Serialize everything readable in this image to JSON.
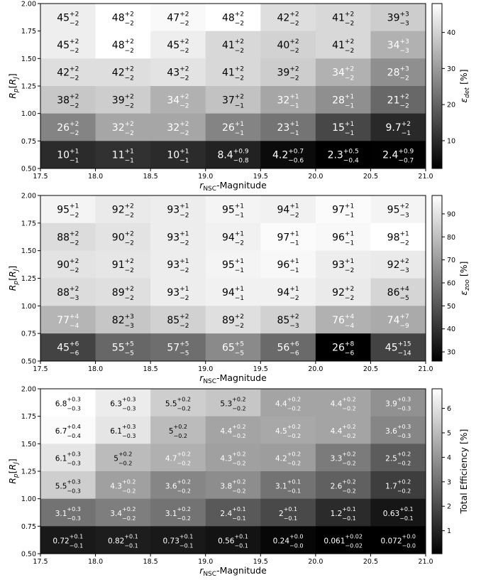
{
  "chart_data": [
    {
      "type": "heatmap",
      "xlabel": "r_NSC-Magnitude",
      "ylabel": "R_p [R_J]",
      "colorbar_label": "ε_det [%]",
      "x_ticks": [
        "17.5",
        "18.0",
        "18.5",
        "19.0",
        "19.5",
        "20.0",
        "20.5",
        "21.0"
      ],
      "y_ticks": [
        "0.50",
        "0.75",
        "1.00",
        "1.25",
        "1.50",
        "1.75",
        "2.00"
      ],
      "colorbar_ticks": [
        10,
        20,
        30,
        40
      ],
      "vmin": 2.3,
      "vmax": 48,
      "xlim": [
        17.5,
        21.0
      ],
      "ylim": [
        0.5,
        2.0
      ],
      "rows": [
        {
          "y_range": [
            1.75,
            2.0
          ],
          "cells": [
            {
              "v": 45,
              "up": "+2",
              "lo": "−2"
            },
            {
              "v": 48,
              "up": "+2",
              "lo": "−2"
            },
            {
              "v": 47,
              "up": "+2",
              "lo": "−2"
            },
            {
              "v": 48,
              "up": "+2",
              "lo": "−2"
            },
            {
              "v": 42,
              "up": "+2",
              "lo": "−2"
            },
            {
              "v": 41,
              "up": "+2",
              "lo": "−2"
            },
            {
              "v": 39,
              "up": "+3",
              "lo": "−3"
            }
          ]
        },
        {
          "y_range": [
            1.5,
            1.75
          ],
          "cells": [
            {
              "v": 45,
              "up": "+2",
              "lo": "−2"
            },
            {
              "v": 48,
              "up": "+2",
              "lo": "−2"
            },
            {
              "v": 45,
              "up": "+2",
              "lo": "−2"
            },
            {
              "v": 41,
              "up": "+2",
              "lo": "−2"
            },
            {
              "v": 40,
              "up": "+2",
              "lo": "−2"
            },
            {
              "v": 41,
              "up": "+2",
              "lo": "−2"
            },
            {
              "v": 34,
              "up": "+3",
              "lo": "−3"
            }
          ]
        },
        {
          "y_range": [
            1.25,
            1.5
          ],
          "cells": [
            {
              "v": 42,
              "up": "+2",
              "lo": "−2"
            },
            {
              "v": 42,
              "up": "+2",
              "lo": "−2"
            },
            {
              "v": 43,
              "up": "+2",
              "lo": "−2"
            },
            {
              "v": 41,
              "up": "+2",
              "lo": "−2"
            },
            {
              "v": 39,
              "up": "+2",
              "lo": "−2"
            },
            {
              "v": 34,
              "up": "+2",
              "lo": "−2"
            },
            {
              "v": 28,
              "up": "+3",
              "lo": "−2"
            }
          ]
        },
        {
          "y_range": [
            1.0,
            1.25
          ],
          "cells": [
            {
              "v": 38,
              "up": "+2",
              "lo": "−2"
            },
            {
              "v": 39,
              "up": "+2",
              "lo": "−2"
            },
            {
              "v": 34,
              "up": "+2",
              "lo": "−2"
            },
            {
              "v": 37,
              "up": "+2",
              "lo": "−1"
            },
            {
              "v": 32,
              "up": "+1",
              "lo": "−1"
            },
            {
              "v": 28,
              "up": "+1",
              "lo": "−1"
            },
            {
              "v": 21,
              "up": "+2",
              "lo": "−2"
            }
          ]
        },
        {
          "y_range": [
            0.75,
            1.0
          ],
          "cells": [
            {
              "v": 26,
              "up": "+2",
              "lo": "−2"
            },
            {
              "v": 32,
              "up": "+2",
              "lo": "−2"
            },
            {
              "v": 32,
              "up": "+2",
              "lo": "−2"
            },
            {
              "v": 26,
              "up": "+1",
              "lo": "−1"
            },
            {
              "v": 23,
              "up": "+1",
              "lo": "−1"
            },
            {
              "v": 15,
              "up": "+1",
              "lo": "−1"
            },
            {
              "v": 9.7,
              "up": "+2",
              "lo": "−1"
            }
          ]
        },
        {
          "y_range": [
            0.5,
            0.75
          ],
          "cells": [
            {
              "v": 10,
              "up": "+1",
              "lo": "−1"
            },
            {
              "v": 11,
              "up": "+1",
              "lo": "−1"
            },
            {
              "v": 10,
              "up": "+1",
              "lo": "−1"
            },
            {
              "v": 8.4,
              "up": "+0.9",
              "lo": "−0.8"
            },
            {
              "v": 4.2,
              "up": "+0.7",
              "lo": "−0.6"
            },
            {
              "v": 2.3,
              "up": "+0.5",
              "lo": "−0.4"
            },
            {
              "v": 2.4,
              "up": "+0.9",
              "lo": "−0.7"
            }
          ]
        }
      ]
    },
    {
      "type": "heatmap",
      "xlabel": "r_NSC-Magnitude",
      "ylabel": "R_p [R_J]",
      "colorbar_label": "ε_zoo [%]",
      "x_ticks": [
        "17.5",
        "18.0",
        "18.5",
        "19.0",
        "19.5",
        "20.0",
        "20.5",
        "21.0"
      ],
      "y_ticks": [
        "0.50",
        "0.75",
        "1.00",
        "1.25",
        "1.50",
        "1.75",
        "2.00"
      ],
      "colorbar_ticks": [
        30,
        40,
        50,
        60,
        70,
        80,
        90
      ],
      "vmin": 26,
      "vmax": 98,
      "xlim": [
        17.5,
        21.0
      ],
      "ylim": [
        0.5,
        2.0
      ],
      "rows": [
        {
          "y_range": [
            1.75,
            2.0
          ],
          "cells": [
            {
              "v": 95,
              "up": "+1",
              "lo": "−2"
            },
            {
              "v": 92,
              "up": "+2",
              "lo": "−2"
            },
            {
              "v": 93,
              "up": "+1",
              "lo": "−2"
            },
            {
              "v": 95,
              "up": "+1",
              "lo": "−1"
            },
            {
              "v": 94,
              "up": "+1",
              "lo": "−2"
            },
            {
              "v": 97,
              "up": "+1",
              "lo": "−1"
            },
            {
              "v": 95,
              "up": "+2",
              "lo": "−3"
            }
          ]
        },
        {
          "y_range": [
            1.5,
            1.75
          ],
          "cells": [
            {
              "v": 88,
              "up": "+2",
              "lo": "−2"
            },
            {
              "v": 90,
              "up": "+2",
              "lo": "−2"
            },
            {
              "v": 93,
              "up": "+1",
              "lo": "−2"
            },
            {
              "v": 94,
              "up": "+1",
              "lo": "−2"
            },
            {
              "v": 97,
              "up": "+1",
              "lo": "−1"
            },
            {
              "v": 96,
              "up": "+1",
              "lo": "−1"
            },
            {
              "v": 98,
              "up": "+1",
              "lo": "−2"
            }
          ]
        },
        {
          "y_range": [
            1.25,
            1.5
          ],
          "cells": [
            {
              "v": 90,
              "up": "+2",
              "lo": "−2"
            },
            {
              "v": 91,
              "up": "+2",
              "lo": "−2"
            },
            {
              "v": 93,
              "up": "+1",
              "lo": "−2"
            },
            {
              "v": 95,
              "up": "+1",
              "lo": "−1"
            },
            {
              "v": 96,
              "up": "+1",
              "lo": "−1"
            },
            {
              "v": 93,
              "up": "+1",
              "lo": "−2"
            },
            {
              "v": 92,
              "up": "+2",
              "lo": "−3"
            }
          ]
        },
        {
          "y_range": [
            1.0,
            1.25
          ],
          "cells": [
            {
              "v": 88,
              "up": "+2",
              "lo": "−3"
            },
            {
              "v": 89,
              "up": "+2",
              "lo": "−2"
            },
            {
              "v": 93,
              "up": "+1",
              "lo": "−2"
            },
            {
              "v": 94,
              "up": "+1",
              "lo": "−1"
            },
            {
              "v": 94,
              "up": "+1",
              "lo": "−2"
            },
            {
              "v": 92,
              "up": "+2",
              "lo": "−2"
            },
            {
              "v": 86,
              "up": "+4",
              "lo": "−5"
            }
          ]
        },
        {
          "y_range": [
            0.75,
            1.0
          ],
          "cells": [
            {
              "v": 77,
              "up": "+4",
              "lo": "−4"
            },
            {
              "v": 82,
              "up": "+3",
              "lo": "−3"
            },
            {
              "v": 85,
              "up": "+2",
              "lo": "−2"
            },
            {
              "v": 89,
              "up": "+2",
              "lo": "−2"
            },
            {
              "v": 85,
              "up": "+2",
              "lo": "−3"
            },
            {
              "v": 76,
              "up": "+4",
              "lo": "−4"
            },
            {
              "v": 74,
              "up": "+7",
              "lo": "−9"
            }
          ]
        },
        {
          "y_range": [
            0.5,
            0.75
          ],
          "cells": [
            {
              "v": 45,
              "up": "+6",
              "lo": "−6"
            },
            {
              "v": 55,
              "up": "+5",
              "lo": "−5"
            },
            {
              "v": 57,
              "up": "+5",
              "lo": "−5"
            },
            {
              "v": 65,
              "up": "+5",
              "lo": "−5"
            },
            {
              "v": 56,
              "up": "+6",
              "lo": "−6"
            },
            {
              "v": 26,
              "up": "+8",
              "lo": "−6"
            },
            {
              "v": 45,
              "up": "+15",
              "lo": "−14"
            }
          ]
        }
      ]
    },
    {
      "type": "heatmap",
      "xlabel": "r_NSC-Magnitude",
      "ylabel": "R_p [R_J]",
      "colorbar_label": "Total Efficiency [%]",
      "x_ticks": [
        "17.5",
        "18.0",
        "18.5",
        "19.0",
        "19.5",
        "20.0",
        "20.5",
        "21.0"
      ],
      "y_ticks": [
        "0.50",
        "0.75",
        "1.00",
        "1.25",
        "1.50",
        "1.75",
        "2.00"
      ],
      "colorbar_ticks": [
        1,
        2,
        3,
        4,
        5,
        6
      ],
      "vmin": 0.06,
      "vmax": 6.8,
      "xlim": [
        17.5,
        21.0
      ],
      "ylim": [
        0.5,
        2.0
      ],
      "rows": [
        {
          "y_range": [
            1.75,
            2.0
          ],
          "cells": [
            {
              "v": 6.8,
              "up": "+0.3",
              "lo": "−0.3"
            },
            {
              "v": 6.3,
              "up": "+0.3",
              "lo": "−0.3"
            },
            {
              "v": 5.5,
              "up": "+0.2",
              "lo": "−0.2"
            },
            {
              "v": 5.3,
              "up": "+0.2",
              "lo": "−0.2"
            },
            {
              "v": 4.4,
              "up": "+0.2",
              "lo": "−0.2"
            },
            {
              "v": 4.4,
              "up": "+0.2",
              "lo": "−0.2"
            },
            {
              "v": 3.9,
              "up": "+0.3",
              "lo": "−0.3"
            }
          ]
        },
        {
          "y_range": [
            1.5,
            1.75
          ],
          "cells": [
            {
              "v": 6.7,
              "up": "+0.4",
              "lo": "−0.4"
            },
            {
              "v": 6.1,
              "up": "+0.3",
              "lo": "−0.3"
            },
            {
              "v": 5,
              "up": "+0.2",
              "lo": "−0.2"
            },
            {
              "v": 4.4,
              "up": "+0.2",
              "lo": "−0.2"
            },
            {
              "v": 4.5,
              "up": "+0.2",
              "lo": "−0.2"
            },
            {
              "v": 4.4,
              "up": "+0.2",
              "lo": "−0.2"
            },
            {
              "v": 3.6,
              "up": "+0.3",
              "lo": "−0.3"
            }
          ]
        },
        {
          "y_range": [
            1.25,
            1.5
          ],
          "cells": [
            {
              "v": 6.1,
              "up": "+0.3",
              "lo": "−0.3"
            },
            {
              "v": 5,
              "up": "+0.2",
              "lo": "−0.2"
            },
            {
              "v": 4.7,
              "up": "+0.2",
              "lo": "−0.2"
            },
            {
              "v": 4.3,
              "up": "+0.2",
              "lo": "−0.2"
            },
            {
              "v": 4.2,
              "up": "+0.2",
              "lo": "−0.2"
            },
            {
              "v": 3.3,
              "up": "+0.2",
              "lo": "−0.2"
            },
            {
              "v": 2.5,
              "up": "+0.2",
              "lo": "−0.2"
            }
          ]
        },
        {
          "y_range": [
            1.0,
            1.25
          ],
          "cells": [
            {
              "v": 5.5,
              "up": "+0.3",
              "lo": "−0.3"
            },
            {
              "v": 4.3,
              "up": "+0.2",
              "lo": "−0.2"
            },
            {
              "v": 3.6,
              "up": "+0.2",
              "lo": "−0.2"
            },
            {
              "v": 3.8,
              "up": "+0.2",
              "lo": "−0.2"
            },
            {
              "v": 3.1,
              "up": "+0.1",
              "lo": "−0.1"
            },
            {
              "v": 2.6,
              "up": "+0.2",
              "lo": "−0.2"
            },
            {
              "v": 1.7,
              "up": "+0.2",
              "lo": "−0.2"
            }
          ]
        },
        {
          "y_range": [
            0.75,
            1.0
          ],
          "cells": [
            {
              "v": 3.1,
              "up": "+0.3",
              "lo": "−0.3"
            },
            {
              "v": 3.4,
              "up": "+0.2",
              "lo": "−0.2"
            },
            {
              "v": 3.1,
              "up": "+0.2",
              "lo": "−0.2"
            },
            {
              "v": 2.4,
              "up": "+0.1",
              "lo": "−0.1"
            },
            {
              "v": 2,
              "up": "+0.1",
              "lo": "−0.1"
            },
            {
              "v": 1.2,
              "up": "+0.1",
              "lo": "−0.1"
            },
            {
              "v": 0.63,
              "up": "+0.1",
              "lo": "−0.1"
            }
          ]
        },
        {
          "y_range": [
            0.5,
            0.75
          ],
          "cells": [
            {
              "v": 0.72,
              "up": "+0.1",
              "lo": "−0.1"
            },
            {
              "v": 0.82,
              "up": "+0.1",
              "lo": "−0.1"
            },
            {
              "v": 0.73,
              "up": "+0.1",
              "lo": "−0.1"
            },
            {
              "v": 0.56,
              "up": "+0.1",
              "lo": "−0.1"
            },
            {
              "v": 0.24,
              "up": "+0.0",
              "lo": "−0.0"
            },
            {
              "v": 0.061,
              "up": "+0.02",
              "lo": "−0.02"
            },
            {
              "v": 0.072,
              "up": "+0.0",
              "lo": "−0.0"
            }
          ]
        }
      ]
    }
  ]
}
